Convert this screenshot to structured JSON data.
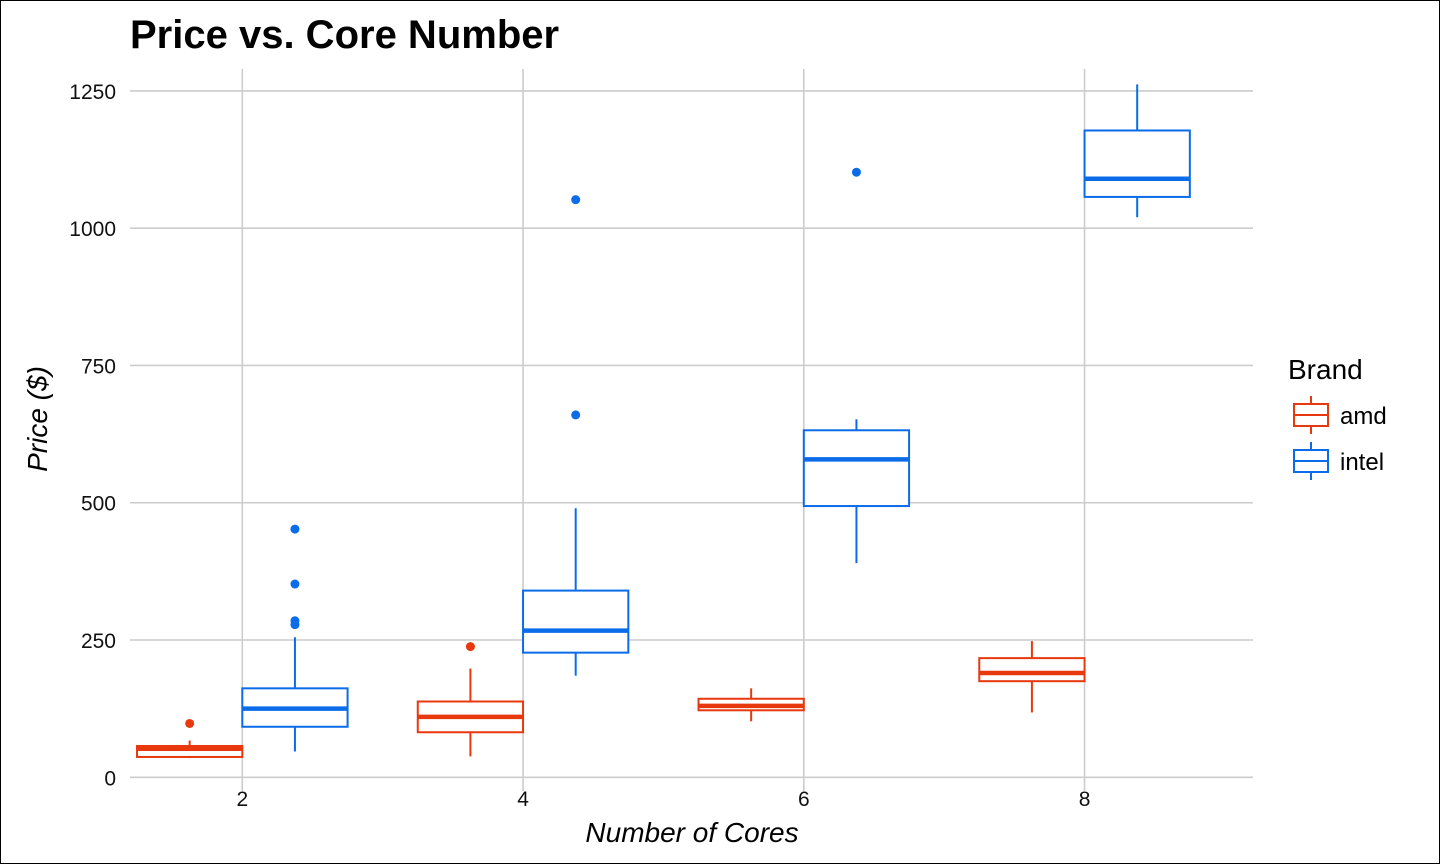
{
  "chart_data": {
    "type": "boxplot",
    "title": "Price vs. Core Number",
    "xlabel": "Number of Cores",
    "ylabel": "Price ($)",
    "x_ticks": [
      2,
      4,
      6,
      8
    ],
    "y_ticks": [
      0,
      250,
      500,
      750,
      1000,
      1250
    ],
    "xlim": [
      1.2,
      9.2
    ],
    "ylim": [
      -25,
      1290
    ],
    "grid": true,
    "legend": {
      "title": "Brand",
      "position": "right"
    },
    "series": [
      {
        "name": "amd",
        "color": "#e8380d",
        "boxes": [
          {
            "x": 2,
            "min": 35,
            "q1": 37,
            "median": 52,
            "q3": 57,
            "max": 67,
            "outliers": [
              98
            ]
          },
          {
            "x": 4,
            "min": 38,
            "q1": 82,
            "median": 110,
            "q3": 138,
            "max": 198,
            "outliers": [
              238
            ]
          },
          {
            "x": 6,
            "min": 102,
            "q1": 122,
            "median": 130,
            "q3": 143,
            "max": 162,
            "outliers": []
          },
          {
            "x": 8,
            "min": 118,
            "q1": 175,
            "median": 190,
            "q3": 217,
            "max": 248,
            "outliers": []
          }
        ]
      },
      {
        "name": "intel",
        "color": "#0a6ce8",
        "boxes": [
          {
            "x": 2,
            "min": 47,
            "q1": 92,
            "median": 125,
            "q3": 162,
            "max": 255,
            "outliers": [
              278,
              285,
              352,
              452
            ]
          },
          {
            "x": 4,
            "min": 185,
            "q1": 227,
            "median": 267,
            "q3": 340,
            "max": 490,
            "outliers": [
              660,
              1052
            ]
          },
          {
            "x": 6,
            "min": 390,
            "q1": 494,
            "median": 579,
            "q3": 632,
            "max": 652,
            "outliers": [
              1102
            ]
          },
          {
            "x": 8,
            "min": 1020,
            "q1": 1057,
            "median": 1090,
            "q3": 1178,
            "max": 1262,
            "outliers": []
          }
        ]
      }
    ]
  }
}
